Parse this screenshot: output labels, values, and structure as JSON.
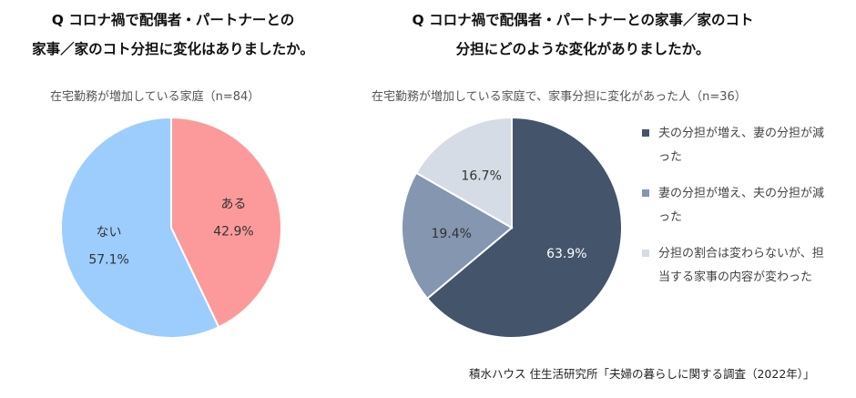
{
  "chart_data": [
    {
      "type": "pie",
      "title": "Q コロナ禍で配偶者・パートナーとの\n家事／家のコト分担に変化はありましたか。",
      "subtitle": "在宅勤務が増加している家庭（n=84）",
      "slices": [
        {
          "label": "ある",
          "value": 42.9,
          "value_label": "42.9%",
          "color": "#fc9a9b"
        },
        {
          "label": "ない",
          "value": 57.1,
          "value_label": "57.1%",
          "color": "#9ccdfd"
        }
      ],
      "legend": "none"
    },
    {
      "type": "pie",
      "title": "Q コロナ禍で配偶者・パートナーとの家事／家のコト\n分担にどのような変化がありましたか。",
      "subtitle": "在宅勤務が増加している家庭で、家事分担に変化があった人（n=36）",
      "slices": [
        {
          "label": "夫の分担が増え、妻の分担が減った",
          "value": 63.9,
          "value_label": "63.9%",
          "color": "#44546a"
        },
        {
          "label": "妻の分担が増え、夫の分担が減った",
          "value": 19.4,
          "value_label": "19.4%",
          "color": "#8496b0"
        },
        {
          "label": "分担の割合は変わらないが、担当する家事の内容が変わった",
          "value": 16.7,
          "value_label": "16.7%",
          "color": "#d6dce5"
        }
      ],
      "legend": "right"
    }
  ],
  "source": "積水ハウス 住生活研究所「夫婦の暮らしに関する調査（2022年）」"
}
